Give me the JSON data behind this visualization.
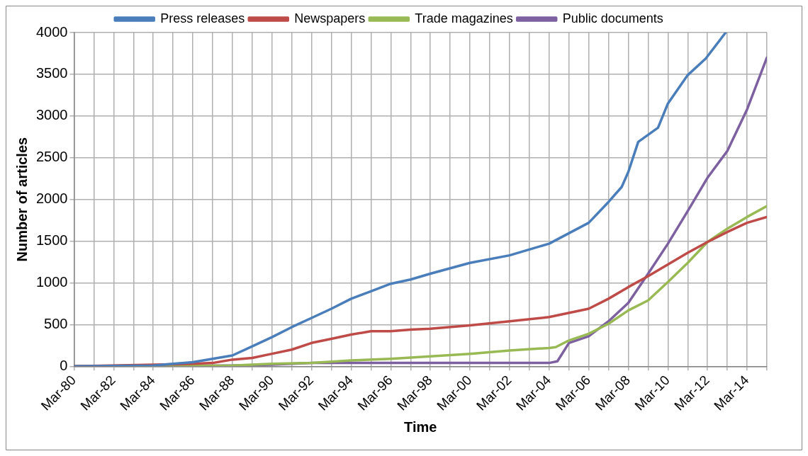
{
  "chart_data": {
    "type": "line",
    "xlabel": "Time",
    "ylabel": "Number of articles",
    "legend": "top",
    "grid": true,
    "marker": "none",
    "line_style": "solid",
    "xlim": [
      "1980-03",
      "2015-03"
    ],
    "ylim": [
      0,
      4000
    ],
    "yticks": [
      0,
      500,
      1000,
      1500,
      2000,
      2500,
      3000,
      3500,
      4000
    ],
    "xticks": [
      {
        "value": "1980-03",
        "label": "Mar-80"
      },
      {
        "value": "1981-03",
        "label": null
      },
      {
        "value": "1982-03",
        "label": "Mar-82"
      },
      {
        "value": "1983-03",
        "label": null
      },
      {
        "value": "1984-03",
        "label": "Mar-84"
      },
      {
        "value": "1985-03",
        "label": null
      },
      {
        "value": "1986-03",
        "label": "Mar-86"
      },
      {
        "value": "1987-03",
        "label": null
      },
      {
        "value": "1988-03",
        "label": "Mar-88"
      },
      {
        "value": "1989-03",
        "label": null
      },
      {
        "value": "1990-03",
        "label": "Mar-90"
      },
      {
        "value": "1991-03",
        "label": null
      },
      {
        "value": "1992-03",
        "label": "Mar-92"
      },
      {
        "value": "1993-03",
        "label": null
      },
      {
        "value": "1994-03",
        "label": "Mar-94"
      },
      {
        "value": "1995-03",
        "label": null
      },
      {
        "value": "1996-03",
        "label": "Mar-96"
      },
      {
        "value": "1997-03",
        "label": null
      },
      {
        "value": "1998-03",
        "label": "Mar-98"
      },
      {
        "value": "1999-03",
        "label": null
      },
      {
        "value": "2000-03",
        "label": "Mar-00"
      },
      {
        "value": "2001-03",
        "label": null
      },
      {
        "value": "2002-03",
        "label": "Mar-02"
      },
      {
        "value": "2003-03",
        "label": null
      },
      {
        "value": "2004-03",
        "label": "Mar-04"
      },
      {
        "value": "2005-03",
        "label": null
      },
      {
        "value": "2006-03",
        "label": "Mar-06"
      },
      {
        "value": "2007-03",
        "label": null
      },
      {
        "value": "2008-03",
        "label": "Mar-08"
      },
      {
        "value": "2009-03",
        "label": null
      },
      {
        "value": "2010-03",
        "label": "Mar-10"
      },
      {
        "value": "2011-03",
        "label": null
      },
      {
        "value": "2012-03",
        "label": "Mar-12"
      },
      {
        "value": "2013-03",
        "label": null
      },
      {
        "value": "2014-03",
        "label": "Mar-14"
      },
      {
        "value": "2015-03",
        "label": null
      }
    ],
    "series": [
      {
        "name": "Press releases",
        "color": "#4a7ebb",
        "x": [
          "1980-03",
          "1984-03",
          "1985-03",
          "1986-03",
          "1987-03",
          "1988-03",
          "1989-03",
          "1990-03",
          "1991-03",
          "1992-03",
          "1993-03",
          "1994-03",
          "1995-03",
          "1996-03",
          "1997-03",
          "1998-03",
          "2000-03",
          "2002-03",
          "2004-03",
          "2006-03",
          "2007-03",
          "2007-11",
          "2008-03",
          "2008-09",
          "2009-09",
          "2010-03",
          "2011-03",
          "2012-02",
          "2013-02"
        ],
        "values": [
          0,
          10,
          30,
          50,
          90,
          130,
          240,
          350,
          470,
          580,
          690,
          810,
          900,
          990,
          1040,
          1110,
          1240,
          1330,
          1470,
          1720,
          1970,
          2150,
          2330,
          2690,
          2860,
          3150,
          3490,
          3690,
          4000
        ]
      },
      {
        "name": "Newspapers",
        "color": "#be4b48",
        "x": [
          "1980-03",
          "1986-03",
          "1987-03",
          "1988-03",
          "1989-03",
          "1990-03",
          "1991-03",
          "1992-03",
          "1993-03",
          "1994-03",
          "1995-03",
          "1996-03",
          "1997-03",
          "1998-03",
          "2000-03",
          "2002-03",
          "2004-03",
          "2006-03",
          "2007-03",
          "2008-03",
          "2009-03",
          "2010-03",
          "2011-03",
          "2012-03",
          "2013-03",
          "2014-03",
          "2015-03"
        ],
        "values": [
          0,
          30,
          40,
          80,
          100,
          150,
          200,
          280,
          330,
          380,
          420,
          420,
          440,
          450,
          490,
          540,
          590,
          690,
          810,
          950,
          1080,
          1220,
          1360,
          1490,
          1610,
          1720,
          1790
        ]
      },
      {
        "name": "Trade magazines",
        "color": "#98b954",
        "x": [
          "1980-03",
          "1988-03",
          "1990-03",
          "1992-03",
          "1994-03",
          "1996-03",
          "1998-03",
          "2000-03",
          "2002-03",
          "2004-03",
          "2004-07",
          "2005-03",
          "2006-03",
          "2007-03",
          "2008-03",
          "2009-03",
          "2010-03",
          "2011-03",
          "2012-03",
          "2013-03",
          "2014-03",
          "2015-03"
        ],
        "values": [
          0,
          10,
          30,
          40,
          70,
          90,
          120,
          150,
          190,
          220,
          230,
          310,
          390,
          510,
          670,
          790,
          1010,
          1240,
          1490,
          1650,
          1790,
          1920
        ]
      },
      {
        "name": "Public documents",
        "color": "#7d60a0",
        "x": [
          "1980-03",
          "1988-03",
          "1990-03",
          "1992-03",
          "1996-03",
          "2004-03",
          "2004-08",
          "2005-03",
          "2006-03",
          "2007-03",
          "2008-03",
          "2009-03",
          "2010-03",
          "2011-03",
          "2012-03",
          "2013-03",
          "2014-03",
          "2015-03"
        ],
        "values": [
          0,
          10,
          20,
          40,
          40,
          40,
          60,
          280,
          360,
          540,
          760,
          1110,
          1470,
          1860,
          2260,
          2580,
          3080,
          3700
        ]
      }
    ]
  }
}
